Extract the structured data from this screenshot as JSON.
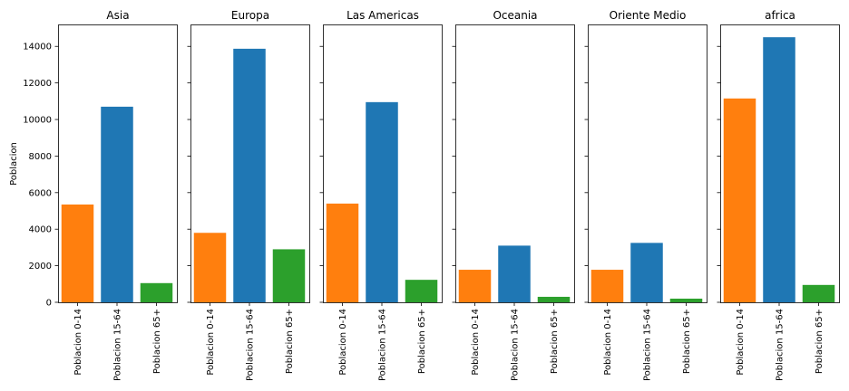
{
  "chart_data": {
    "type": "bar",
    "ylabel": "Poblacion",
    "ylim": [
      0,
      15200
    ],
    "yticks": [
      0,
      2000,
      4000,
      6000,
      8000,
      10000,
      12000,
      14000
    ],
    "grid": false,
    "categories": [
      "Poblacion 0-14",
      "Poblacion 15-64",
      "Poblacion 65+"
    ],
    "colors": [
      "#ff7f0e",
      "#1f77b4",
      "#2ca02c"
    ],
    "panels": [
      {
        "title": "Asia",
        "values": [
          5350,
          10700,
          1050
        ]
      },
      {
        "title": "Europa",
        "values": [
          3800,
          13870,
          2900
        ]
      },
      {
        "title": "Las Americas",
        "values": [
          5400,
          10950,
          1230
        ]
      },
      {
        "title": "Oceania",
        "values": [
          1780,
          3100,
          300
        ]
      },
      {
        "title": "Oriente Medio",
        "values": [
          1780,
          3250,
          200
        ]
      },
      {
        "title": "africa",
        "values": [
          11150,
          14500,
          950
        ]
      }
    ]
  }
}
